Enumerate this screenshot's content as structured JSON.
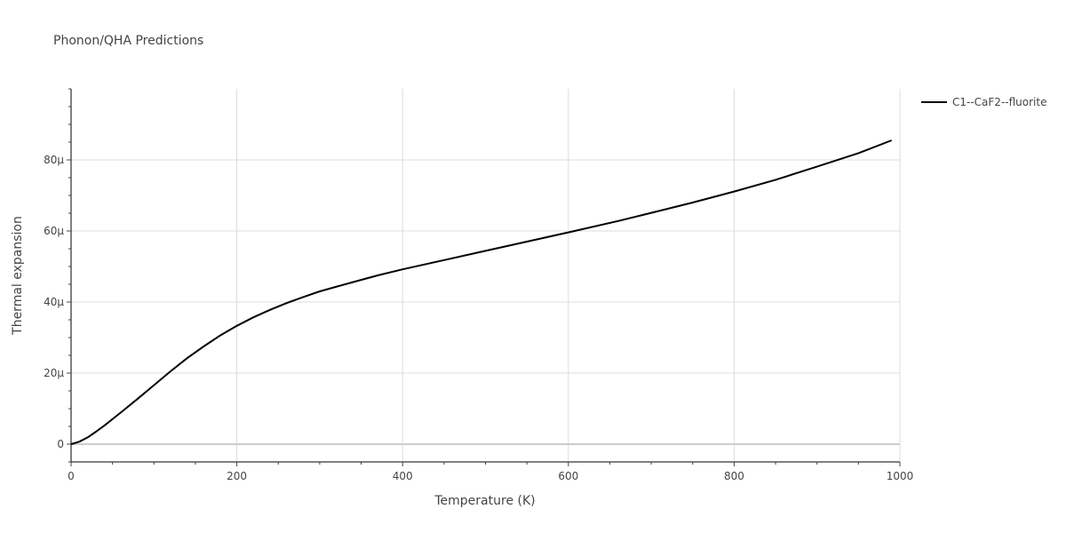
{
  "chart_data": {
    "type": "line",
    "title": "Phonon/QHA Predictions",
    "xlabel": "Temperature (K)",
    "ylabel": "Thermal expansion",
    "xlim": [
      0,
      1000
    ],
    "ylim": [
      -5e-06,
      0.0001
    ],
    "x_ticks": [
      0,
      200,
      400,
      600,
      800,
      1000
    ],
    "x_tick_labels": [
      "0",
      "200",
      "400",
      "600",
      "800",
      "1000"
    ],
    "y_ticks": [
      0,
      2e-05,
      4e-05,
      6e-05,
      8e-05
    ],
    "y_tick_labels": [
      "0",
      "20μ",
      "40μ",
      "60μ",
      "80μ"
    ],
    "grid": true,
    "legend_position": "top-right",
    "series": [
      {
        "name": "C1--CaF2--fluorite",
        "color": "#000000",
        "x": [
          0,
          10,
          20,
          30,
          40,
          60,
          80,
          100,
          120,
          140,
          160,
          180,
          200,
          220,
          240,
          260,
          280,
          300,
          340,
          370,
          400,
          450,
          500,
          550,
          600,
          660,
          700,
          750,
          800,
          850,
          900,
          950,
          990
        ],
        "y": [
          0,
          7e-07,
          1.9e-06,
          3.5e-06,
          5.2e-06,
          8.9e-06,
          1.27e-05,
          1.66e-05,
          2.05e-05,
          2.42e-05,
          2.75e-05,
          3.06e-05,
          3.33e-05,
          3.57e-05,
          3.78e-05,
          3.97e-05,
          4.14e-05,
          4.3e-05,
          4.56e-05,
          4.75e-05,
          4.92e-05,
          5.18e-05,
          5.44e-05,
          5.7e-05,
          5.96e-05,
          6.28e-05,
          6.51e-05,
          6.8e-05,
          7.11e-05,
          7.44e-05,
          7.81e-05,
          8.19e-05,
          8.55e-05
        ]
      }
    ]
  }
}
